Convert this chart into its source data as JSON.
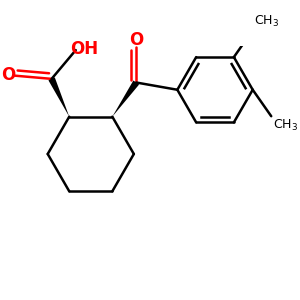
{
  "bg_color": "#ffffff",
  "bond_color": "#000000",
  "red_color": "#ff0000",
  "lw": 1.8,
  "figsize": [
    3.0,
    3.0
  ],
  "dpi": 100,
  "xlim": [
    0.0,
    1.0
  ],
  "ylim": [
    0.1,
    0.9
  ]
}
